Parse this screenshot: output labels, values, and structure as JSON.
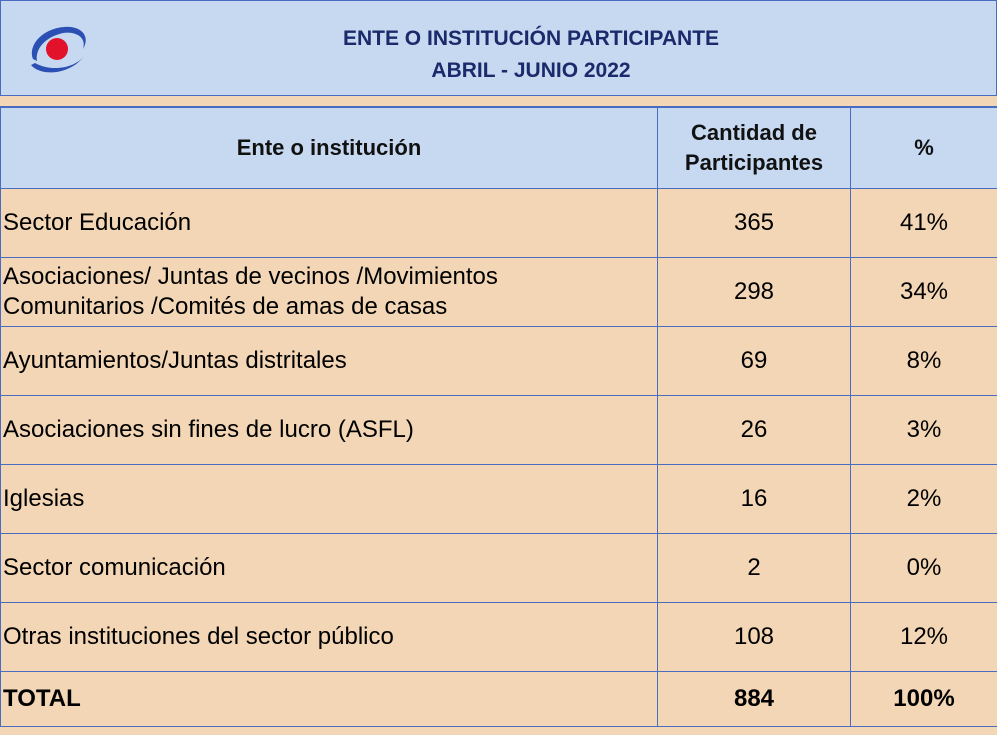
{
  "header": {
    "title": "ENTE O INSTITUCIÓN PARTICIPANTE",
    "subtitle": "ABRIL - JUNIO 2022"
  },
  "table": {
    "columns": [
      "Ente o institución",
      "Cantidad de\nParticipantes",
      "%"
    ],
    "rows": [
      [
        "Sector Educación",
        "365",
        "41%"
      ],
      [
        "Asociaciones/ Juntas de vecinos /Movimientos\nComunitarios /Comités de amas de casas",
        "298",
        "34%"
      ],
      [
        "Ayuntamientos/Juntas distritales",
        "69",
        "8%"
      ],
      [
        "Asociaciones sin fines de lucro (ASFL)",
        "26",
        "3%"
      ],
      [
        "Iglesias",
        "16",
        "2%"
      ],
      [
        "Sector comunicación",
        "2",
        "0%"
      ],
      [
        "Otras instituciones del sector público",
        "108",
        "12%"
      ]
    ],
    "total": [
      "TOTAL",
      "884",
      "100%"
    ]
  }
}
